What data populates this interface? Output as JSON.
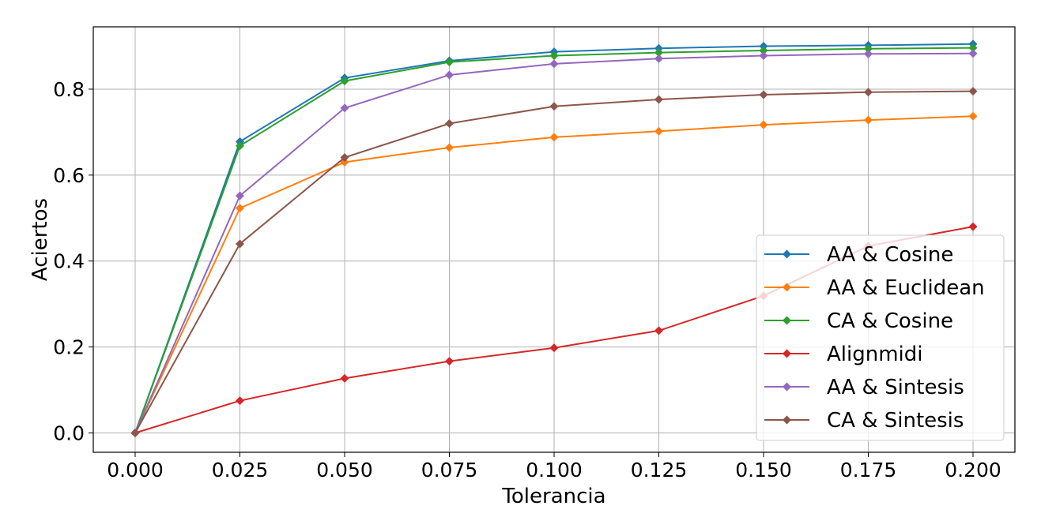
{
  "chart_data": {
    "type": "line",
    "xlabel": "Tolerancia",
    "ylabel": "Aciertos",
    "xlim": [
      -0.01,
      0.21
    ],
    "ylim": [
      -0.045,
      0.945
    ],
    "xticks": [
      0.0,
      0.025,
      0.05,
      0.075,
      0.1,
      0.125,
      0.15,
      0.175,
      0.2
    ],
    "xtick_labels": [
      "0.000",
      "0.025",
      "0.050",
      "0.075",
      "0.100",
      "0.125",
      "0.150",
      "0.175",
      "0.200"
    ],
    "yticks": [
      0.0,
      0.2,
      0.4,
      0.6,
      0.8
    ],
    "ytick_labels": [
      "0.0",
      "0.2",
      "0.4",
      "0.6",
      "0.8"
    ],
    "grid": true,
    "legend_position": "lower-right",
    "x": [
      0.0,
      0.025,
      0.05,
      0.075,
      0.1,
      0.125,
      0.15,
      0.175,
      0.2
    ],
    "series": [
      {
        "name": "AA & Cosine",
        "color": "#1f77b4",
        "values": [
          0.0,
          0.678,
          0.826,
          0.866,
          0.887,
          0.895,
          0.9,
          0.902,
          0.905
        ]
      },
      {
        "name": "AA & Euclidean",
        "color": "#ff7f0e",
        "values": [
          0.0,
          0.523,
          0.63,
          0.664,
          0.688,
          0.702,
          0.717,
          0.728,
          0.737
        ]
      },
      {
        "name": "CA & Cosine",
        "color": "#2ca02c",
        "values": [
          0.0,
          0.668,
          0.819,
          0.863,
          0.878,
          0.885,
          0.89,
          0.894,
          0.896
        ]
      },
      {
        "name": "Alignmidi",
        "color": "#d62728",
        "values": [
          0.0,
          0.075,
          0.127,
          0.167,
          0.198,
          0.238,
          0.319,
          0.435,
          0.48
        ]
      },
      {
        "name": "AA & Sintesis",
        "color": "#9467bd",
        "values": [
          0.0,
          0.552,
          0.756,
          0.833,
          0.859,
          0.871,
          0.878,
          0.882,
          0.883
        ]
      },
      {
        "name": "CA & Sintesis",
        "color": "#8c564b",
        "values": [
          0.0,
          0.44,
          0.641,
          0.72,
          0.76,
          0.776,
          0.787,
          0.793,
          0.795
        ]
      }
    ]
  }
}
